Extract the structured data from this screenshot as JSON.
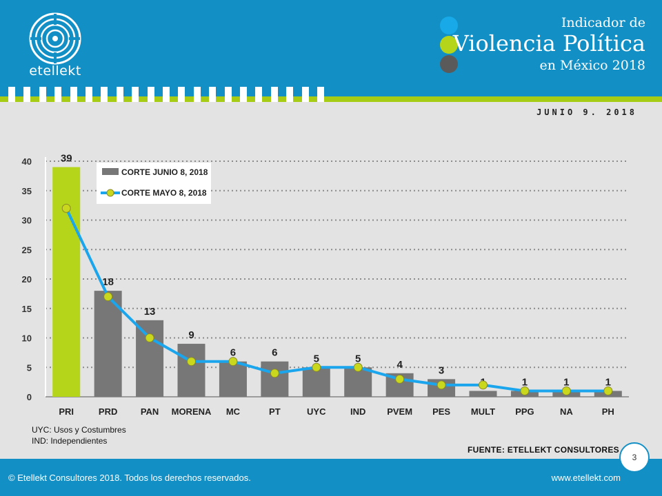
{
  "header": {
    "logo_text": "etellekt",
    "title_line1": "Indicador de",
    "title_line2": "Violencia Política",
    "title_line3": "en México 2018",
    "dot_colors": [
      "#17a9e8",
      "#b4d51a",
      "#5a5a5a"
    ]
  },
  "date": "JUNIO 9. 2018",
  "chart_data": {
    "type": "bar",
    "categories": [
      "PRI",
      "PRD",
      "PAN",
      "MORENA",
      "MC",
      "PT",
      "UYC",
      "IND",
      "PVEM",
      "PES",
      "MULT",
      "PPG",
      "NA",
      "PH"
    ],
    "series": [
      {
        "name": "CORTE JUNIO 8, 2018",
        "type": "bar",
        "values": [
          39,
          18,
          13,
          9,
          6,
          6,
          5,
          5,
          4,
          3,
          1,
          1,
          1,
          1
        ],
        "color": "#777777",
        "highlight_color": "#b4d51a"
      },
      {
        "name": "CORTE MAYO 8, 2018",
        "type": "line",
        "values": [
          32,
          17,
          10,
          6,
          6,
          4,
          5,
          5,
          3,
          2,
          2,
          1,
          1,
          1
        ],
        "color": "#1aa5ec",
        "marker_color": "#c9d81c"
      }
    ],
    "yticks": [
      0,
      5,
      10,
      15,
      20,
      25,
      30,
      35,
      40
    ],
    "ylim": [
      0,
      40
    ],
    "grid": true,
    "legend": "top-left"
  },
  "notes": {
    "line1": "UYC: Usos y Costumbres",
    "line2": "IND: Independientes"
  },
  "source": "FUENTE: ETELLEKT CONSULTORES",
  "page_number": "3",
  "footer": {
    "copyright": "© Etellekt Consultores 2018. Todos los derechos reservados.",
    "website": "www.etellekt.com"
  }
}
